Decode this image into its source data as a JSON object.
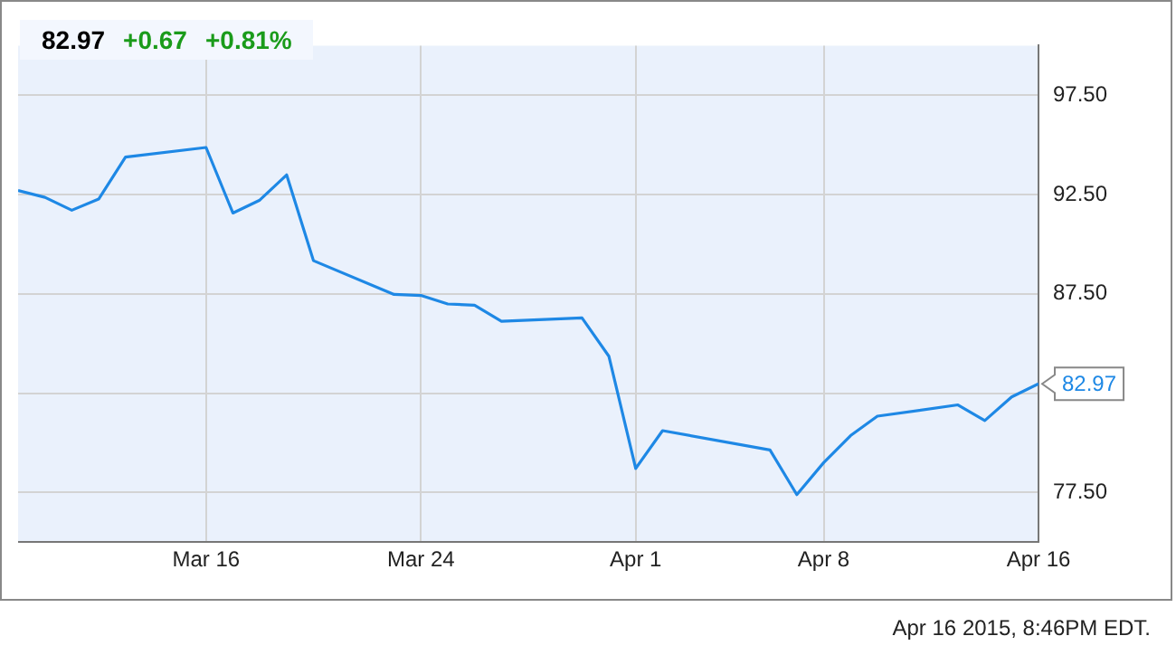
{
  "chart_data": {
    "type": "line",
    "title": "82.97",
    "annotations": [
      "+0.67",
      "+0.81%",
      {
        "text": "82.97",
        "x": "2015-04-16",
        "y": 82.97
      },
      "Apr 16 2015, 8:46PM EDT."
    ],
    "x": [
      "2015-03-09",
      "2015-03-10",
      "2015-03-11",
      "2015-03-12",
      "2015-03-13",
      "2015-03-16",
      "2015-03-17",
      "2015-03-18",
      "2015-03-19",
      "2015-03-20",
      "2015-03-23",
      "2015-03-24",
      "2015-03-25",
      "2015-03-26",
      "2015-03-27",
      "2015-03-30",
      "2015-03-31",
      "2015-04-01",
      "2015-04-02",
      "2015-04-06",
      "2015-04-07",
      "2015-04-08",
      "2015-04-09",
      "2015-04-10",
      "2015-04-13",
      "2015-04-14",
      "2015-04-15",
      "2015-04-16"
    ],
    "series": [
      {
        "color": "#1e88e5",
        "values": [
          92.7,
          92.36,
          91.71,
          92.27,
          94.39,
          94.87,
          91.57,
          92.22,
          93.49,
          89.17,
          87.47,
          87.42,
          86.99,
          86.93,
          86.12,
          86.29,
          84.36,
          78.71,
          80.61,
          79.64,
          77.39,
          79.0,
          80.36,
          81.34,
          81.91,
          81.12,
          82.31,
          82.97
        ]
      }
    ],
    "xlim": [
      "2015-03-09",
      "2015-04-16"
    ],
    "xticks": [
      {
        "value": "2015-03-16",
        "label": "Mar 16"
      },
      {
        "value": "2015-03-24",
        "label": "Mar 24"
      },
      {
        "value": "2015-04-01",
        "label": "Apr 1"
      },
      {
        "value": "2015-04-08",
        "label": "Apr 8"
      },
      {
        "value": "2015-04-16",
        "label": "Apr 16"
      }
    ],
    "ylim": [
      75,
      100
    ],
    "yticks": [
      {
        "value": 77.5,
        "label": "77.50"
      },
      {
        "value": 82.5,
        "label": null
      },
      {
        "value": 87.5,
        "label": "87.50"
      },
      {
        "value": 92.5,
        "label": "92.50"
      },
      {
        "value": 97.5,
        "label": "97.50"
      }
    ],
    "grid": true,
    "legend": false,
    "marker": "none",
    "line_style": "solid"
  }
}
